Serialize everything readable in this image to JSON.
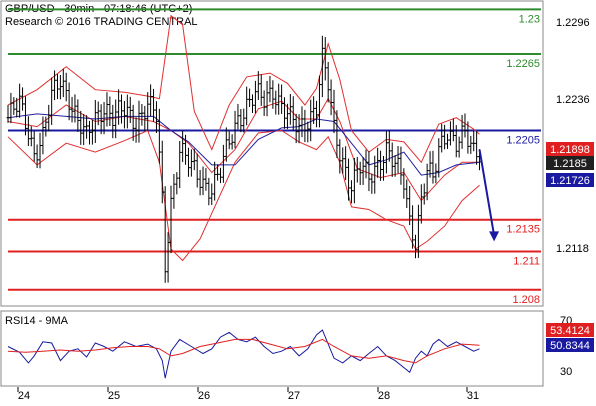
{
  "header": {
    "title": "GBP/USD - 30min - 07:18:46 (UTC+2)",
    "source": "Research © 2016 TRADING CENTRAL"
  },
  "rsi": {
    "title": "RSI14 - 9MA"
  },
  "colors": {
    "green": "#2d8a2d",
    "red": "#e02020",
    "blue": "#1a1aa0",
    "price_box": "#202020",
    "band": "#e03030",
    "ma": "#2020a0"
  },
  "chart_data": [
    {
      "type": "candlestick",
      "title": "GBP/USD - 30min - 07:18:46 (UTC+2)",
      "x_tick_labels": [
        "24",
        "25",
        "26",
        "27",
        "28",
        "31"
      ],
      "y_tick_labels": [
        "1.2296",
        "1.2236",
        "1.2185",
        "1.2118"
      ],
      "ylim": [
        1.2072,
        1.2305
      ],
      "levels": [
        {
          "label": "1.23",
          "value": 1.23,
          "color": "green"
        },
        {
          "label": "1.2265",
          "value": 1.2265,
          "color": "green"
        },
        {
          "label": "1.2205",
          "value": 1.2205,
          "color": "blue"
        },
        {
          "label": "1.2135",
          "value": 1.2135,
          "color": "red"
        },
        {
          "label": "1.211",
          "value": 1.211,
          "color": "red"
        },
        {
          "label": "1.208",
          "value": 1.208,
          "color": "red"
        }
      ],
      "price_boxes": [
        {
          "label": "1.21898",
          "value": 1.21898,
          "color": "red"
        },
        {
          "label": "1.2185",
          "value": 1.2185,
          "color": "price_box"
        },
        {
          "label": "1.21726",
          "value": 1.21726,
          "color": "blue"
        }
      ],
      "close_path": [
        [
          0,
          1.2215
        ],
        [
          4,
          1.2225
        ],
        [
          7,
          1.2205
        ],
        [
          9,
          1.2188
        ],
        [
          12,
          1.22
        ],
        [
          15,
          1.223
        ],
        [
          18,
          1.2245
        ],
        [
          21,
          1.2232
        ],
        [
          24,
          1.2212
        ],
        [
          27,
          1.2198
        ],
        [
          30,
          1.2215
        ],
        [
          33,
          1.2225
        ],
        [
          36,
          1.2215
        ],
        [
          40,
          1.222
        ],
        [
          44,
          1.2213
        ],
        [
          48,
          1.2225
        ],
        [
          51,
          1.2215
        ],
        [
          53,
          1.215
        ],
        [
          54,
          1.21
        ],
        [
          56,
          1.215
        ],
        [
          59,
          1.219
        ],
        [
          63,
          1.2175
        ],
        [
          67,
          1.2165
        ],
        [
          70,
          1.216
        ],
        [
          73,
          1.2172
        ],
        [
          76,
          1.2195
        ],
        [
          79,
          1.2215
        ],
        [
          82,
          1.2225
        ],
        [
          85,
          1.2232
        ],
        [
          88,
          1.2228
        ],
        [
          91,
          1.2238
        ],
        [
          94,
          1.2225
        ],
        [
          97,
          1.2213
        ],
        [
          100,
          1.2205
        ],
        [
          103,
          1.2215
        ],
        [
          106,
          1.2225
        ],
        [
          108,
          1.226
        ],
        [
          110,
          1.224
        ],
        [
          112,
          1.2205
        ],
        [
          115,
          1.2182
        ],
        [
          118,
          1.2162
        ],
        [
          121,
          1.2175
        ],
        [
          124,
          1.2168
        ],
        [
          127,
          1.218
        ],
        [
          130,
          1.219
        ],
        [
          133,
          1.2176
        ],
        [
          136,
          1.2165
        ],
        [
          138,
          1.2135
        ],
        [
          140,
          1.212
        ],
        [
          142,
          1.215
        ],
        [
          144,
          1.2172
        ],
        [
          146,
          1.2165
        ],
        [
          148,
          1.219
        ],
        [
          151,
          1.2207
        ],
        [
          154,
          1.2195
        ],
        [
          157,
          1.22
        ],
        [
          160,
          1.2188
        ],
        [
          162,
          1.219
        ]
      ],
      "upper_band": [
        [
          0,
          1.2225
        ],
        [
          10,
          1.2237
        ],
        [
          20,
          1.2255
        ],
        [
          30,
          1.2237
        ],
        [
          40,
          1.2235
        ],
        [
          48,
          1.2232
        ],
        [
          52,
          1.223
        ],
        [
          56,
          1.2295
        ],
        [
          60,
          1.2288
        ],
        [
          64,
          1.222
        ],
        [
          70,
          1.219
        ],
        [
          76,
          1.2225
        ],
        [
          82,
          1.2247
        ],
        [
          90,
          1.225
        ],
        [
          96,
          1.2242
        ],
        [
          102,
          1.2225
        ],
        [
          106,
          1.2238
        ],
        [
          110,
          1.2273
        ],
        [
          114,
          1.2245
        ],
        [
          118,
          1.2205
        ],
        [
          124,
          1.2188
        ],
        [
          130,
          1.2198
        ],
        [
          136,
          1.2196
        ],
        [
          142,
          1.218
        ],
        [
          148,
          1.221
        ],
        [
          154,
          1.2215
        ],
        [
          160,
          1.2206
        ],
        [
          162,
          1.2202
        ]
      ],
      "lower_band": [
        [
          0,
          1.22
        ],
        [
          10,
          1.2178
        ],
        [
          20,
          1.2195
        ],
        [
          30,
          1.2188
        ],
        [
          40,
          1.2197
        ],
        [
          48,
          1.2205
        ],
        [
          52,
          1.218
        ],
        [
          56,
          1.2112
        ],
        [
          60,
          1.2103
        ],
        [
          66,
          1.212
        ],
        [
          72,
          1.215
        ],
        [
          78,
          1.218
        ],
        [
          86,
          1.2203
        ],
        [
          94,
          1.2205
        ],
        [
          100,
          1.2196
        ],
        [
          106,
          1.219
        ],
        [
          110,
          1.22
        ],
        [
          114,
          1.218
        ],
        [
          118,
          1.2145
        ],
        [
          124,
          1.2143
        ],
        [
          130,
          1.2135
        ],
        [
          136,
          1.213
        ],
        [
          140,
          1.2112
        ],
        [
          144,
          1.2118
        ],
        [
          150,
          1.213
        ],
        [
          156,
          1.215
        ],
        [
          162,
          1.2162
        ]
      ],
      "mid_band": [
        [
          0,
          1.2212
        ],
        [
          10,
          1.2208
        ],
        [
          20,
          1.2225
        ],
        [
          30,
          1.2212
        ],
        [
          40,
          1.2216
        ],
        [
          50,
          1.2212
        ],
        [
          56,
          1.2205
        ],
        [
          62,
          1.2195
        ],
        [
          70,
          1.2172
        ],
        [
          78,
          1.219
        ],
        [
          86,
          1.2222
        ],
        [
          94,
          1.2228
        ],
        [
          100,
          1.2214
        ],
        [
          106,
          1.2214
        ],
        [
          110,
          1.223
        ],
        [
          114,
          1.2212
        ],
        [
          120,
          1.2175
        ],
        [
          128,
          1.2168
        ],
        [
          136,
          1.2172
        ],
        [
          142,
          1.215
        ],
        [
          150,
          1.217
        ],
        [
          156,
          1.218
        ],
        [
          162,
          1.218
        ]
      ],
      "ma_line": [
        [
          0,
          1.2215
        ],
        [
          10,
          1.2218
        ],
        [
          20,
          1.2216
        ],
        [
          30,
          1.2214
        ],
        [
          40,
          1.2216
        ],
        [
          50,
          1.2216
        ],
        [
          56,
          1.2205
        ],
        [
          62,
          1.2196
        ],
        [
          70,
          1.2178
        ],
        [
          78,
          1.2178
        ],
        [
          86,
          1.2198
        ],
        [
          94,
          1.2207
        ],
        [
          100,
          1.2208
        ],
        [
          106,
          1.2214
        ],
        [
          112,
          1.2212
        ],
        [
          118,
          1.2195
        ],
        [
          124,
          1.2178
        ],
        [
          130,
          1.2182
        ],
        [
          136,
          1.2188
        ],
        [
          142,
          1.217
        ],
        [
          148,
          1.2172
        ],
        [
          154,
          1.2178
        ],
        [
          162,
          1.218
        ]
      ],
      "forecast_arrow": {
        "from": [
          162,
          1.219
        ],
        "to": [
          167,
          1.2118
        ]
      }
    },
    {
      "type": "line",
      "title": "RSI14 - 9MA",
      "y_tick_labels": [
        "70",
        "30"
      ],
      "ylim": [
        20,
        78
      ],
      "value_boxes": [
        {
          "label": "53.4124",
          "value": 53.4124,
          "color": "red"
        },
        {
          "label": "50.8344",
          "value": 50.8344,
          "color": "blue"
        }
      ],
      "series": [
        {
          "color": "blue",
          "values": [
            [
              0,
              52
            ],
            [
              4,
              47
            ],
            [
              7,
              38
            ],
            [
              9,
              44
            ],
            [
              12,
              56
            ],
            [
              15,
              55
            ],
            [
              18,
              40
            ],
            [
              21,
              48
            ],
            [
              24,
              50
            ],
            [
              27,
              43
            ],
            [
              30,
              55
            ],
            [
              33,
              52
            ],
            [
              36,
              48
            ],
            [
              40,
              56
            ],
            [
              44,
              52
            ],
            [
              48,
              54
            ],
            [
              51,
              50
            ],
            [
              53,
              40
            ],
            [
              54,
              25
            ],
            [
              56,
              48
            ],
            [
              59,
              58
            ],
            [
              63,
              52
            ],
            [
              67,
              46
            ],
            [
              70,
              50
            ],
            [
              73,
              60
            ],
            [
              76,
              64
            ],
            [
              79,
              58
            ],
            [
              82,
              56
            ],
            [
              85,
              60
            ],
            [
              88,
              52
            ],
            [
              91,
              46
            ],
            [
              94,
              48
            ],
            [
              97,
              52
            ],
            [
              100,
              44
            ],
            [
              103,
              50
            ],
            [
              106,
              62
            ],
            [
              108,
              66
            ],
            [
              110,
              54
            ],
            [
              112,
              42
            ],
            [
              115,
              38
            ],
            [
              118,
              44
            ],
            [
              121,
              40
            ],
            [
              124,
              46
            ],
            [
              127,
              52
            ],
            [
              130,
              44
            ],
            [
              133,
              40
            ],
            [
              136,
              34
            ],
            [
              138,
              30
            ],
            [
              140,
              42
            ],
            [
              142,
              48
            ],
            [
              144,
              44
            ],
            [
              146,
              54
            ],
            [
              148,
              58
            ],
            [
              151,
              52
            ],
            [
              154,
              56
            ],
            [
              157,
              52
            ],
            [
              160,
              48
            ],
            [
              162,
              50
            ]
          ]
        },
        {
          "color": "red",
          "values": [
            [
              0,
              48
            ],
            [
              6,
              47
            ],
            [
              12,
              48
            ],
            [
              18,
              49
            ],
            [
              24,
              48
            ],
            [
              30,
              49
            ],
            [
              36,
              51
            ],
            [
              42,
              52
            ],
            [
              48,
              52
            ],
            [
              52,
              50
            ],
            [
              56,
              44
            ],
            [
              60,
              46
            ],
            [
              66,
              52
            ],
            [
              72,
              55
            ],
            [
              78,
              58
            ],
            [
              84,
              58
            ],
            [
              90,
              54
            ],
            [
              96,
              50
            ],
            [
              102,
              52
            ],
            [
              108,
              58
            ],
            [
              112,
              52
            ],
            [
              118,
              44
            ],
            [
              124,
              42
            ],
            [
              130,
              44
            ],
            [
              136,
              40
            ],
            [
              140,
              38
            ],
            [
              144,
              44
            ],
            [
              150,
              50
            ],
            [
              156,
              54
            ],
            [
              162,
              53
            ]
          ]
        }
      ]
    }
  ]
}
